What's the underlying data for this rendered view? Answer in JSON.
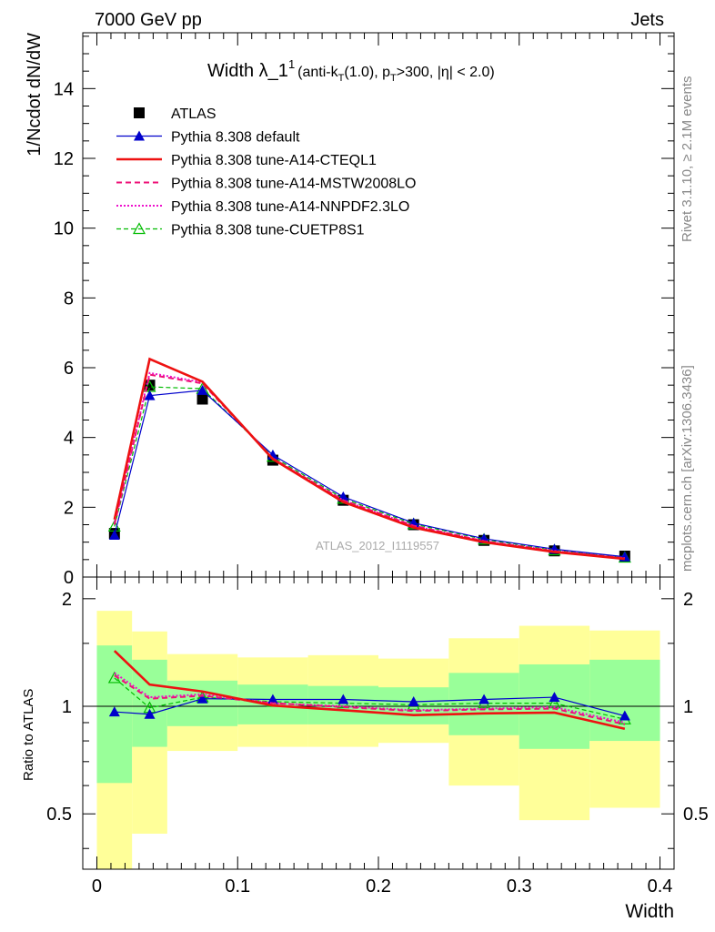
{
  "header": {
    "left": "7000 GeV pp",
    "right": "Jets"
  },
  "title": {
    "main": "Width λ_1",
    "sup": "1",
    "rest_a": "(anti-k",
    "sub_t": "T",
    "rest_b": "(1.0), p",
    "sub_t2": "T",
    "rest_c": ">300, |η| < 2.0)"
  },
  "side_labels": {
    "rivet": "Rivet 3.1.10, ≥ 2.1M events",
    "mcplots": "mcplots.cern.ch [arXiv:1306.3436]"
  },
  "watermark": "ATLAS_2012_I1119557",
  "colors": {
    "atlas": "#000000",
    "default": "#0000cc",
    "cteql1": "#ee1111",
    "mstw": "#ee1177",
    "nnpdf": "#ee11cc",
    "cuetp8s1": "#00bb00",
    "band_outer": "#ffff99",
    "band_inner": "#99ff99"
  },
  "chart_data": [
    {
      "type": "line",
      "panel": "main",
      "xlabel": "",
      "ylabel": "1/Ncdot dN/dW",
      "xlim": [
        -0.01,
        0.41
      ],
      "ylim": [
        0,
        15.6
      ],
      "yticks": [
        0,
        2,
        4,
        6,
        8,
        10,
        12,
        14
      ],
      "x": [
        0.0125,
        0.0375,
        0.075,
        0.125,
        0.175,
        0.225,
        0.275,
        0.325,
        0.375
      ],
      "legend": [
        {
          "name": "ATLAS",
          "style": "marker-square"
        },
        {
          "name": "Pythia 8.308 default",
          "style": "line-triangle"
        },
        {
          "name": "Pythia 8.308 tune-A14-CTEQL1",
          "style": "solid-thick"
        },
        {
          "name": "Pythia 8.308 tune-A14-MSTW2008LO",
          "style": "dashed"
        },
        {
          "name": "Pythia 8.308 tune-A14-NNPDF2.3LO",
          "style": "dotted"
        },
        {
          "name": "Pythia 8.308 tune-CUETP8S1",
          "style": "dashed-triangle-open"
        }
      ],
      "series": [
        {
          "name": "ATLAS",
          "values": [
            1.25,
            5.5,
            5.1,
            3.35,
            2.2,
            1.5,
            1.05,
            0.75,
            0.6
          ]
        },
        {
          "name": "Pythia 8.308 default",
          "values": [
            1.2,
            5.2,
            5.35,
            3.5,
            2.3,
            1.55,
            1.1,
            0.8,
            0.58
          ]
        },
        {
          "name": "Pythia 8.308 tune-A14-CTEQL1",
          "values": [
            1.65,
            6.25,
            5.6,
            3.38,
            2.15,
            1.42,
            1.0,
            0.72,
            0.52
          ]
        },
        {
          "name": "Pythia 8.308 tune-A14-MSTW2008LO",
          "values": [
            1.5,
            5.8,
            5.55,
            3.4,
            2.2,
            1.47,
            1.03,
            0.74,
            0.54
          ]
        },
        {
          "name": "Pythia 8.308 tune-A14-NNPDF2.3LO",
          "values": [
            1.55,
            5.85,
            5.58,
            3.4,
            2.2,
            1.47,
            1.03,
            0.75,
            0.54
          ]
        },
        {
          "name": "Pythia 8.308 tune-CUETP8S1",
          "values": [
            1.45,
            5.45,
            5.4,
            3.45,
            2.25,
            1.52,
            1.08,
            0.77,
            0.56
          ]
        }
      ]
    },
    {
      "type": "line",
      "panel": "ratio",
      "xlabel": "Width",
      "ylabel": "Ratio to ATLAS",
      "xlim": [
        -0.01,
        0.41
      ],
      "ylim": [
        0.35,
        2.3
      ],
      "yscale": "log",
      "yticks": [
        0.5,
        1,
        2
      ],
      "xticks": [
        0,
        0.1,
        0.2,
        0.3,
        0.4
      ],
      "xtick_labels": [
        "0",
        "0.1",
        "0.2",
        "0.3",
        "0.4"
      ],
      "x": [
        0.0125,
        0.0375,
        0.075,
        0.125,
        0.175,
        0.225,
        0.275,
        0.325,
        0.375
      ],
      "band_edges": [
        0,
        0.025,
        0.05,
        0.1,
        0.15,
        0.2,
        0.25,
        0.3,
        0.35,
        0.4
      ],
      "bands": {
        "outer_low": [
          0.35,
          0.44,
          0.75,
          0.77,
          0.77,
          0.79,
          0.6,
          0.48,
          0.52
        ],
        "outer_high": [
          1.85,
          1.62,
          1.4,
          1.37,
          1.39,
          1.36,
          1.55,
          1.68,
          1.63
        ],
        "inner_low": [
          0.61,
          0.77,
          0.88,
          0.89,
          0.89,
          0.89,
          0.83,
          0.76,
          0.8
        ],
        "inner_high": [
          1.48,
          1.35,
          1.18,
          1.15,
          1.14,
          1.13,
          1.24,
          1.31,
          1.35
        ]
      },
      "series": [
        {
          "name": "Pythia 8.308 default",
          "values": [
            0.965,
            0.95,
            1.05,
            1.045,
            1.045,
            1.03,
            1.045,
            1.06,
            0.94
          ]
        },
        {
          "name": "Pythia 8.308 tune-A14-CTEQL1",
          "values": [
            1.43,
            1.15,
            1.1,
            1.005,
            0.975,
            0.945,
            0.955,
            0.96,
            0.865
          ]
        },
        {
          "name": "Pythia 8.308 tune-A14-MSTW2008LO",
          "values": [
            1.22,
            1.05,
            1.07,
            1.02,
            0.995,
            0.97,
            0.98,
            0.985,
            0.89
          ]
        },
        {
          "name": "Pythia 8.308 tune-A14-NNPDF2.3LO",
          "values": [
            1.24,
            1.06,
            1.08,
            1.02,
            1.0,
            0.975,
            0.985,
            0.995,
            0.9
          ]
        },
        {
          "name": "Pythia 8.308 tune-CUETP8S1",
          "values": [
            1.2,
            0.99,
            1.06,
            1.03,
            1.02,
            1.01,
            1.02,
            1.02,
            0.92
          ]
        }
      ]
    }
  ]
}
